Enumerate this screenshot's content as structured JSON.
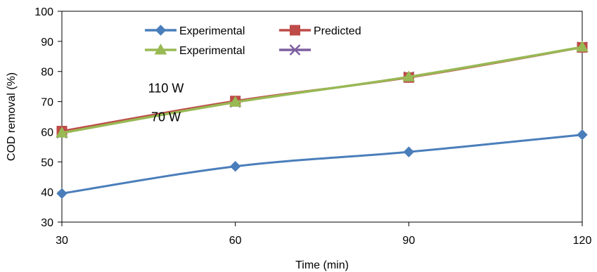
{
  "chart_data": {
    "type": "line",
    "title": "",
    "xlabel": "Time (min)",
    "ylabel": "COD removal (%)",
    "x": [
      30,
      60,
      90,
      120
    ],
    "xlim": [
      30,
      120
    ],
    "ylim": [
      30,
      100
    ],
    "xticks": [
      "30",
      "60",
      "90",
      "120"
    ],
    "yticks": [
      "30",
      "40",
      "50",
      "60",
      "70",
      "80",
      "90",
      "100"
    ],
    "grid": false,
    "legend_position": "top-left",
    "series": [
      {
        "name": "Experimental",
        "marker": "diamond",
        "color": "#4a7ebb",
        "values": [
          39.5,
          48.5,
          53.3,
          59.0
        ]
      },
      {
        "name": "Predicted",
        "marker": "square",
        "color": "#be4b48",
        "values": [
          60.2,
          70.2,
          78.0,
          88.0
        ]
      },
      {
        "name": "Experimental",
        "marker": "triangle",
        "color": "#98b954",
        "values": [
          59.6,
          69.8,
          78.2,
          88.1
        ]
      },
      {
        "name": "",
        "marker": "x",
        "color": "#7d5fa0",
        "values": [
          59.6,
          69.8,
          78.2,
          88.1
        ]
      }
    ],
    "annotations": [
      {
        "text": "110 W",
        "x": 48,
        "y": 73
      },
      {
        "text": "70 W",
        "x": 48,
        "y": 63.5
      }
    ]
  }
}
